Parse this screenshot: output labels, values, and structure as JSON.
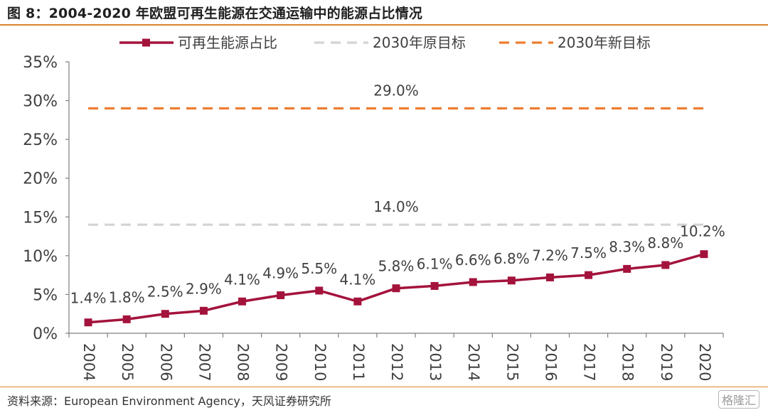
{
  "figure_title": "图 8：2004-2020 年欧盟可再生能源在交通运输中的能源占比情况",
  "source": "资料来源：European Environment Agency，天风证券研究所",
  "watermark": "格隆汇",
  "colors": {
    "accent_rule": "#d9822b",
    "series_share": "#a4133c",
    "original_target": "#d3d3d3",
    "new_target": "#ed7d31",
    "axis": "#7f7f7f",
    "text": "#404040"
  },
  "chart_data": {
    "type": "line",
    "legend": [
      "可再生能源占比",
      "2030年原目标",
      "2030年新目标"
    ],
    "legend_position": "top",
    "categories": [
      "2004",
      "2005",
      "2006",
      "2007",
      "2008",
      "2009",
      "2010",
      "2011",
      "2012",
      "2013",
      "2014",
      "2015",
      "2016",
      "2017",
      "2018",
      "2019",
      "2020"
    ],
    "series": [
      {
        "name": "可再生能源占比",
        "style": "solid-with-square-markers",
        "color": "#a4133c",
        "values": [
          1.4,
          1.8,
          2.5,
          2.9,
          4.1,
          4.9,
          5.5,
          4.1,
          5.8,
          6.1,
          6.6,
          6.8,
          7.2,
          7.5,
          8.3,
          8.8,
          10.2
        ],
        "labels": [
          "1.4%",
          "1.8%",
          "2.5%",
          "2.9%",
          "4.1%",
          "4.9%",
          "5.5%",
          "4.1%",
          "5.8%",
          "6.1%",
          "6.6%",
          "6.8%",
          "7.2%",
          "7.5%",
          "8.3%",
          "8.8%",
          "10.2%"
        ]
      },
      {
        "name": "2030年原目标",
        "style": "dashed",
        "color": "#d3d3d3",
        "value": 14.0,
        "label": "14.0%"
      },
      {
        "name": "2030年新目标",
        "style": "dashed",
        "color": "#ed7d31",
        "value": 29.0,
        "label": "29.0%"
      }
    ],
    "ylim": [
      0,
      35
    ],
    "yticks": [
      0,
      5,
      10,
      15,
      20,
      25,
      30,
      35
    ],
    "ytick_labels": [
      "0%",
      "5%",
      "10%",
      "15%",
      "20%",
      "25%",
      "30%",
      "35%"
    ],
    "grid": false
  }
}
